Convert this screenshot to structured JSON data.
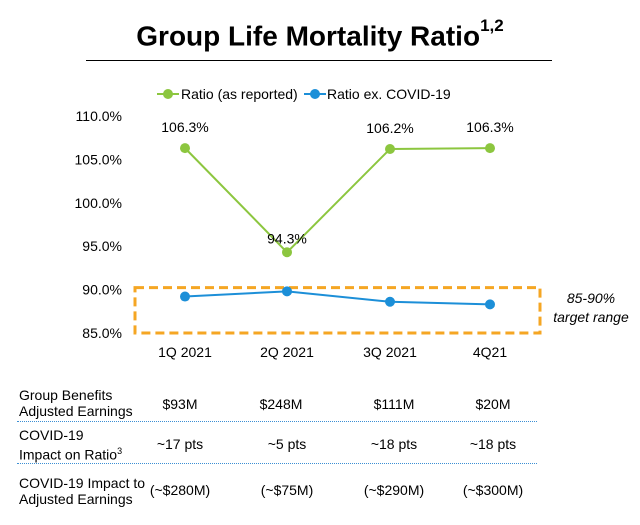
{
  "title": "Group Life Mortality Ratio",
  "title_superscript": "1,2",
  "chart_data": {
    "type": "line",
    "categories": [
      "1Q 2021",
      "2Q 2021",
      "3Q 2021",
      "4Q21"
    ],
    "series": [
      {
        "name": "Ratio (as reported)",
        "color": "#8cc63f",
        "values": [
          106.3,
          94.3,
          106.2,
          106.3
        ],
        "data_labels": [
          "106.3%",
          "94.3%",
          "106.2%",
          "106.3%"
        ]
      },
      {
        "name": "Ratio ex. COVID-19",
        "color": "#1c8fd8",
        "values": [
          89.2,
          89.8,
          88.6,
          88.3
        ]
      }
    ],
    "yticks": [
      85,
      90,
      95,
      100,
      105,
      110
    ],
    "ytick_labels": [
      "85.0%",
      "90.0%",
      "95.0%",
      "100.0%",
      "105.0%",
      "110.0%"
    ],
    "ylim": [
      85,
      110
    ],
    "legend_position": "top",
    "target_band": {
      "range": [
        85,
        90
      ],
      "color": "#f5a623",
      "label_line1": "85-90%",
      "label_line2": "target range"
    }
  },
  "table": {
    "rows": [
      {
        "label_line1": "Group Benefits",
        "label_line2": "Adjusted Earnings",
        "label_sup": "",
        "values": [
          "$93M",
          "$248M",
          "$111M",
          "$20M"
        ]
      },
      {
        "label_line1": "COVID-19",
        "label_line2": "Impact on Ratio",
        "label_sup": "3",
        "values": [
          "~17 pts",
          "~5 pts",
          "~18 pts",
          "~18 pts"
        ]
      },
      {
        "label_line1": "COVID-19 Impact to",
        "label_line2": "Adjusted Earnings",
        "label_sup": "",
        "values": [
          "(~$280M)",
          "(~$75M)",
          "(~$290M)",
          "(~$300M)"
        ]
      }
    ]
  }
}
